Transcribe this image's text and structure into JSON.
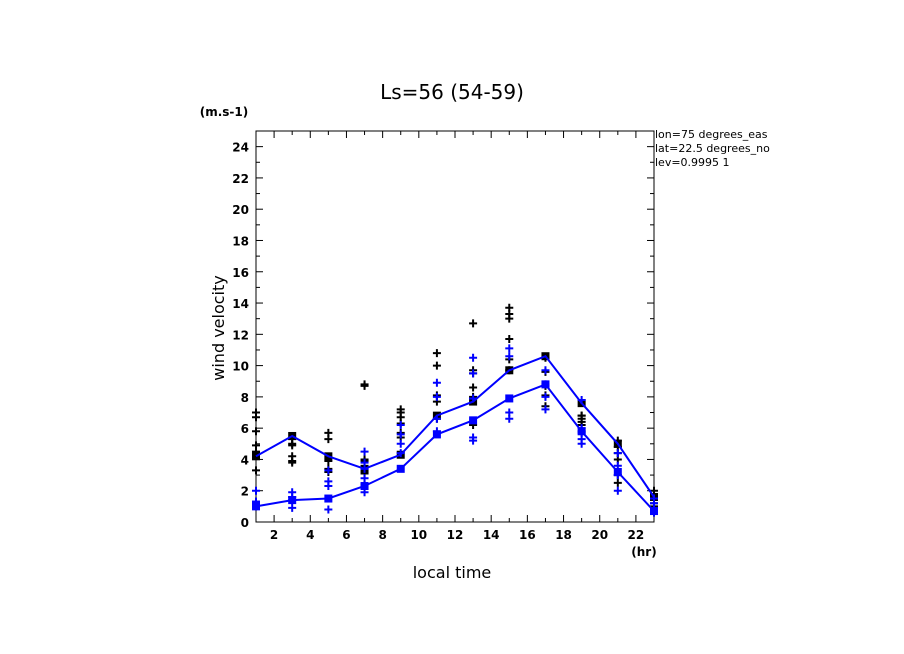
{
  "chart_data": {
    "type": "line",
    "title": "Ls=56 (54-59)",
    "xlabel": "local time",
    "ylabel": "wind velocity",
    "x_unit": "(hr)",
    "y_unit": "(m.s-1)",
    "xlim": [
      1,
      23
    ],
    "ylim": [
      0,
      25
    ],
    "x_ticks": [
      2,
      4,
      6,
      8,
      10,
      12,
      14,
      16,
      18,
      20,
      22
    ],
    "y_ticks": [
      0,
      2,
      4,
      6,
      8,
      10,
      12,
      14,
      16,
      18,
      20,
      22,
      24
    ],
    "grid": false,
    "annotations": [
      "lon=75 degrees_eas",
      "lat=22.5 degrees_no",
      "lev=0.9995 1"
    ],
    "x": [
      1,
      3,
      5,
      7,
      9,
      11,
      13,
      15,
      17,
      19,
      21,
      23
    ],
    "series": [
      {
        "color": "#0000ff",
        "values": [
          4.2,
          5.5,
          4.2,
          3.4,
          4.3,
          6.8,
          7.7,
          9.7,
          10.6,
          7.6,
          5.0,
          1.6
        ],
        "markers": [
          4.9,
          3.3,
          5.8,
          7.0,
          6.7,
          4.5,
          4.2,
          5.0,
          5.3,
          4.9,
          3.9,
          3.8,
          3.9,
          3.4,
          3.2,
          5.7,
          5.3,
          3.9,
          4.0,
          3.1,
          2.4,
          8.8,
          8.7,
          7.2,
          7.0,
          6.7,
          6.3,
          5.7,
          5.4,
          10.8,
          10.0,
          8.1,
          7.7,
          6.6,
          6.2,
          12.7,
          9.7,
          9.5,
          8.6,
          8.0,
          13.7,
          13.3,
          13.0,
          11.7,
          10.4,
          9.7,
          8.7,
          10.5,
          9.6,
          8.1,
          7.4,
          6.8,
          6.6,
          6.4,
          6.8,
          6.2,
          5.8,
          5.2,
          4.8,
          4.4,
          4.0,
          3.0,
          2.5,
          2.0,
          1.6,
          1.2,
          1.0,
          0.9
        ]
      },
      {
        "color": "#0000ff",
        "values": [
          1.0,
          1.4,
          1.5,
          2.3,
          3.4,
          5.6,
          6.5,
          7.9,
          8.8,
          5.8,
          3.2,
          0.7
        ],
        "markers": [
          1.3,
          1.0,
          2.0,
          1.3,
          1.2,
          0.9,
          1.9,
          1.6,
          1.4,
          0.8,
          3.3,
          2.6,
          2.3,
          1.9,
          4.5,
          3.8,
          3.4,
          2.8,
          6.2,
          5.6,
          5.0,
          4.4,
          8.9,
          8.0,
          6.6,
          5.8,
          5.4,
          5.2,
          10.5,
          9.5,
          7.9,
          7.0,
          6.6,
          11.1,
          10.6,
          9.7,
          8.8,
          8.0,
          7.2,
          7.8,
          6.0,
          5.7,
          5.3,
          5.0,
          4.4,
          3.6,
          3.0,
          2.0,
          1.5,
          1.2,
          0.8,
          0.6
        ]
      }
    ]
  }
}
